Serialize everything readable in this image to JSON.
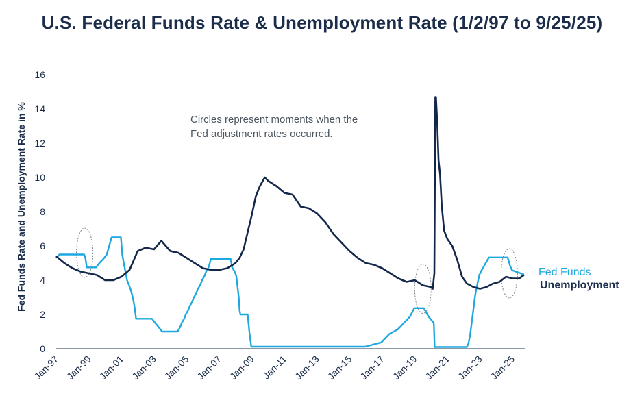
{
  "chart_data": {
    "type": "line",
    "title": "U.S. Federal Funds Rate & Unemployment Rate (1/2/97 to 9/25/25)",
    "ylabel": "Fed Funds Rate and Unemployment Rate in %",
    "xlabel": "",
    "ylim": [
      0,
      16
    ],
    "xlim": [
      1997.0,
      2025.75
    ],
    "yticks": [
      "0",
      "2",
      "4",
      "6",
      "8",
      "10",
      "12",
      "14",
      "16"
    ],
    "xtick_labels": [
      "Jan-97",
      "Jan-99",
      "Jan-01",
      "Jan-03",
      "Jan-05",
      "Jan-07",
      "Jan-09",
      "Jan-11",
      "Jan-13",
      "Jan-15",
      "Jan-17",
      "Jan-19",
      "Jan-21",
      "Jan-23",
      "Jan-25"
    ],
    "annotation": [
      "Circles represent moments when the",
      "Fed adjustment rates occurred."
    ],
    "highlight_circles": [
      {
        "x": 1998.75,
        "y": 5.6
      },
      {
        "x": 2019.5,
        "y": 3.5
      },
      {
        "x": 2024.8,
        "y": 4.4
      }
    ],
    "series": [
      {
        "name": "Fed Funds",
        "color": "#1da8e0",
        "x": [
          1997.0,
          1997.2,
          1998.72,
          1998.8,
          1998.88,
          1999.45,
          1999.65,
          1999.9,
          2000.1,
          2000.4,
          2000.97,
          2001.05,
          2001.15,
          2001.25,
          2001.35,
          2001.45,
          2001.55,
          2001.7,
          2001.8,
          2001.9,
          2002.87,
          2003.5,
          2004.45,
          2004.6,
          2004.7,
          2004.85,
          2004.95,
          2005.1,
          2005.2,
          2005.35,
          2005.45,
          2005.6,
          2005.7,
          2005.85,
          2005.95,
          2006.1,
          2006.2,
          2006.35,
          2006.5,
          2007.7,
          2007.8,
          2007.95,
          2008.05,
          2008.2,
          2008.25,
          2008.3,
          2008.75,
          2008.85,
          2008.97,
          2015.95,
          2016.95,
          2017.2,
          2017.45,
          2017.95,
          2018.2,
          2018.45,
          2018.7,
          2018.97,
          2019.55,
          2019.7,
          2019.85,
          2020.17,
          2020.22,
          2022.2,
          2022.3,
          2022.4,
          2022.5,
          2022.6,
          2022.7,
          2022.85,
          2022.97,
          2023.1,
          2023.25,
          2023.4,
          2023.55,
          2024.7,
          2024.85,
          2024.97,
          2025.7
        ],
        "y": [
          5.3,
          5.5,
          5.5,
          5.25,
          4.75,
          4.75,
          5.0,
          5.25,
          5.5,
          6.5,
          6.5,
          5.5,
          5.0,
          4.5,
          4.0,
          3.75,
          3.5,
          3.0,
          2.5,
          1.75,
          1.75,
          1.0,
          1.0,
          1.25,
          1.5,
          1.75,
          2.0,
          2.25,
          2.5,
          2.75,
          3.0,
          3.25,
          3.5,
          3.75,
          4.0,
          4.25,
          4.5,
          4.75,
          5.25,
          5.25,
          4.75,
          4.5,
          4.25,
          3.0,
          2.25,
          2.0,
          2.0,
          1.0,
          0.12,
          0.12,
          0.37,
          0.62,
          0.87,
          1.12,
          1.37,
          1.62,
          1.87,
          2.37,
          2.37,
          2.12,
          1.87,
          1.5,
          0.1,
          0.1,
          0.33,
          0.83,
          1.58,
          2.33,
          3.08,
          3.83,
          4.33,
          4.58,
          4.83,
          5.08,
          5.33,
          5.33,
          4.83,
          4.58,
          4.33
        ]
      },
      {
        "name": "Unemployment",
        "color": "#13274a",
        "x": [
          1997.0,
          1997.5,
          1998.0,
          1998.5,
          1999.0,
          1999.5,
          2000.0,
          2000.5,
          2001.0,
          2001.5,
          2002.0,
          2002.5,
          2003.0,
          2003.45,
          2004.0,
          2004.5,
          2005.0,
          2005.5,
          2006.0,
          2006.5,
          2007.0,
          2007.5,
          2008.0,
          2008.25,
          2008.5,
          2008.75,
          2009.0,
          2009.25,
          2009.5,
          2009.8,
          2010.0,
          2010.5,
          2011.0,
          2011.5,
          2012.0,
          2012.5,
          2013.0,
          2013.5,
          2014.0,
          2014.5,
          2015.0,
          2015.5,
          2016.0,
          2016.5,
          2017.0,
          2017.5,
          2018.0,
          2018.5,
          2019.0,
          2019.5,
          2020.0,
          2020.1,
          2020.2,
          2020.26,
          2020.3,
          2020.38,
          2020.46,
          2020.55,
          2020.65,
          2020.8,
          2021.0,
          2021.3,
          2021.6,
          2021.9,
          2022.2,
          2022.6,
          2023.0,
          2023.4,
          2023.8,
          2024.2,
          2024.6,
          2025.0,
          2025.4,
          2025.7
        ],
        "y": [
          5.4,
          5.0,
          4.7,
          4.5,
          4.4,
          4.3,
          4.0,
          4.0,
          4.2,
          4.6,
          5.7,
          5.9,
          5.8,
          6.3,
          5.7,
          5.6,
          5.3,
          5.0,
          4.7,
          4.6,
          4.6,
          4.7,
          5.0,
          5.3,
          5.8,
          6.8,
          7.8,
          8.9,
          9.5,
          10.0,
          9.8,
          9.5,
          9.1,
          9.0,
          8.3,
          8.2,
          7.9,
          7.4,
          6.7,
          6.2,
          5.7,
          5.3,
          5.0,
          4.9,
          4.7,
          4.4,
          4.1,
          3.9,
          4.0,
          3.7,
          3.6,
          3.5,
          4.4,
          14.7,
          14.7,
          13.2,
          11.0,
          10.2,
          8.4,
          6.9,
          6.4,
          6.0,
          5.2,
          4.2,
          3.8,
          3.6,
          3.5,
          3.6,
          3.8,
          3.9,
          4.2,
          4.1,
          4.1,
          4.3
        ]
      }
    ]
  }
}
